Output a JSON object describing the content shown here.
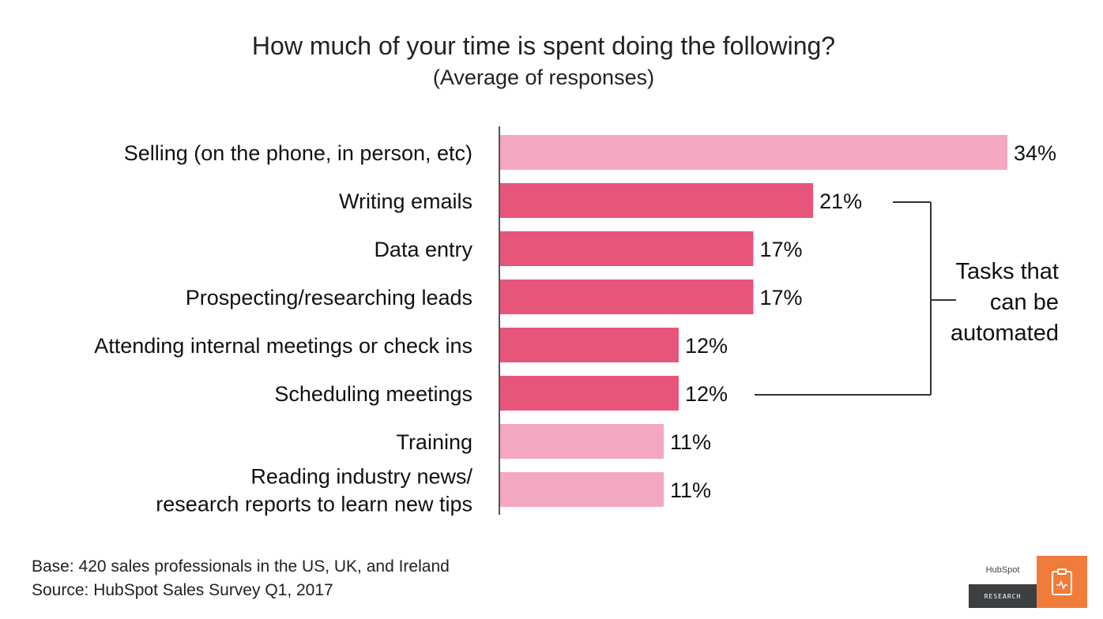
{
  "chart_data": {
    "type": "bar",
    "orientation": "horizontal",
    "title": "How much of your time is spent doing the following?",
    "subtitle": "(Average of responses)",
    "categories": [
      "Selling (on the phone, in person, etc)",
      "Writing emails",
      "Data entry",
      "Prospecting/researching leads",
      "Attending internal meetings or check ins",
      "Scheduling meetings",
      "Training",
      "Reading industry news/ research reports to learn new tips"
    ],
    "category_lines": [
      [
        "Selling (on the phone, in person, etc)"
      ],
      [
        "Writing emails"
      ],
      [
        "Data entry"
      ],
      [
        "Prospecting/researching leads"
      ],
      [
        "Attending internal meetings or check ins"
      ],
      [
        "Scheduling meetings"
      ],
      [
        "Training"
      ],
      [
        "Reading industry news/",
        "research reports to learn new tips"
      ]
    ],
    "values": [
      34,
      21,
      17,
      17,
      12,
      12,
      11,
      11
    ],
    "value_labels": [
      "34%",
      "21%",
      "17%",
      "17%",
      "12%",
      "12%",
      "11%",
      "11%"
    ],
    "highlighted": [
      false,
      true,
      true,
      true,
      true,
      true,
      false,
      false
    ],
    "colors": {
      "highlight": "#e8557b",
      "normal": "#f4a8bf",
      "axis": "#555555",
      "bracket": "#333333"
    },
    "xlim": [
      0,
      34
    ],
    "grid": false,
    "legend": "none",
    "annotation": {
      "text_lines": [
        "Tasks that",
        "can be",
        "automated"
      ],
      "bracket_from_category": "Writing emails",
      "bracket_to_category": "Scheduling meetings"
    }
  },
  "footer": {
    "base": "Base: 420 sales professionals in the US, UK, and Ireland",
    "source": "Source: HubSpot Sales Survey Q1, 2017"
  },
  "logo": {
    "brand": "HubSpot",
    "tag": "RESEARCH",
    "icon": "clipboard-icon",
    "brand_color": "#f07c3b"
  }
}
